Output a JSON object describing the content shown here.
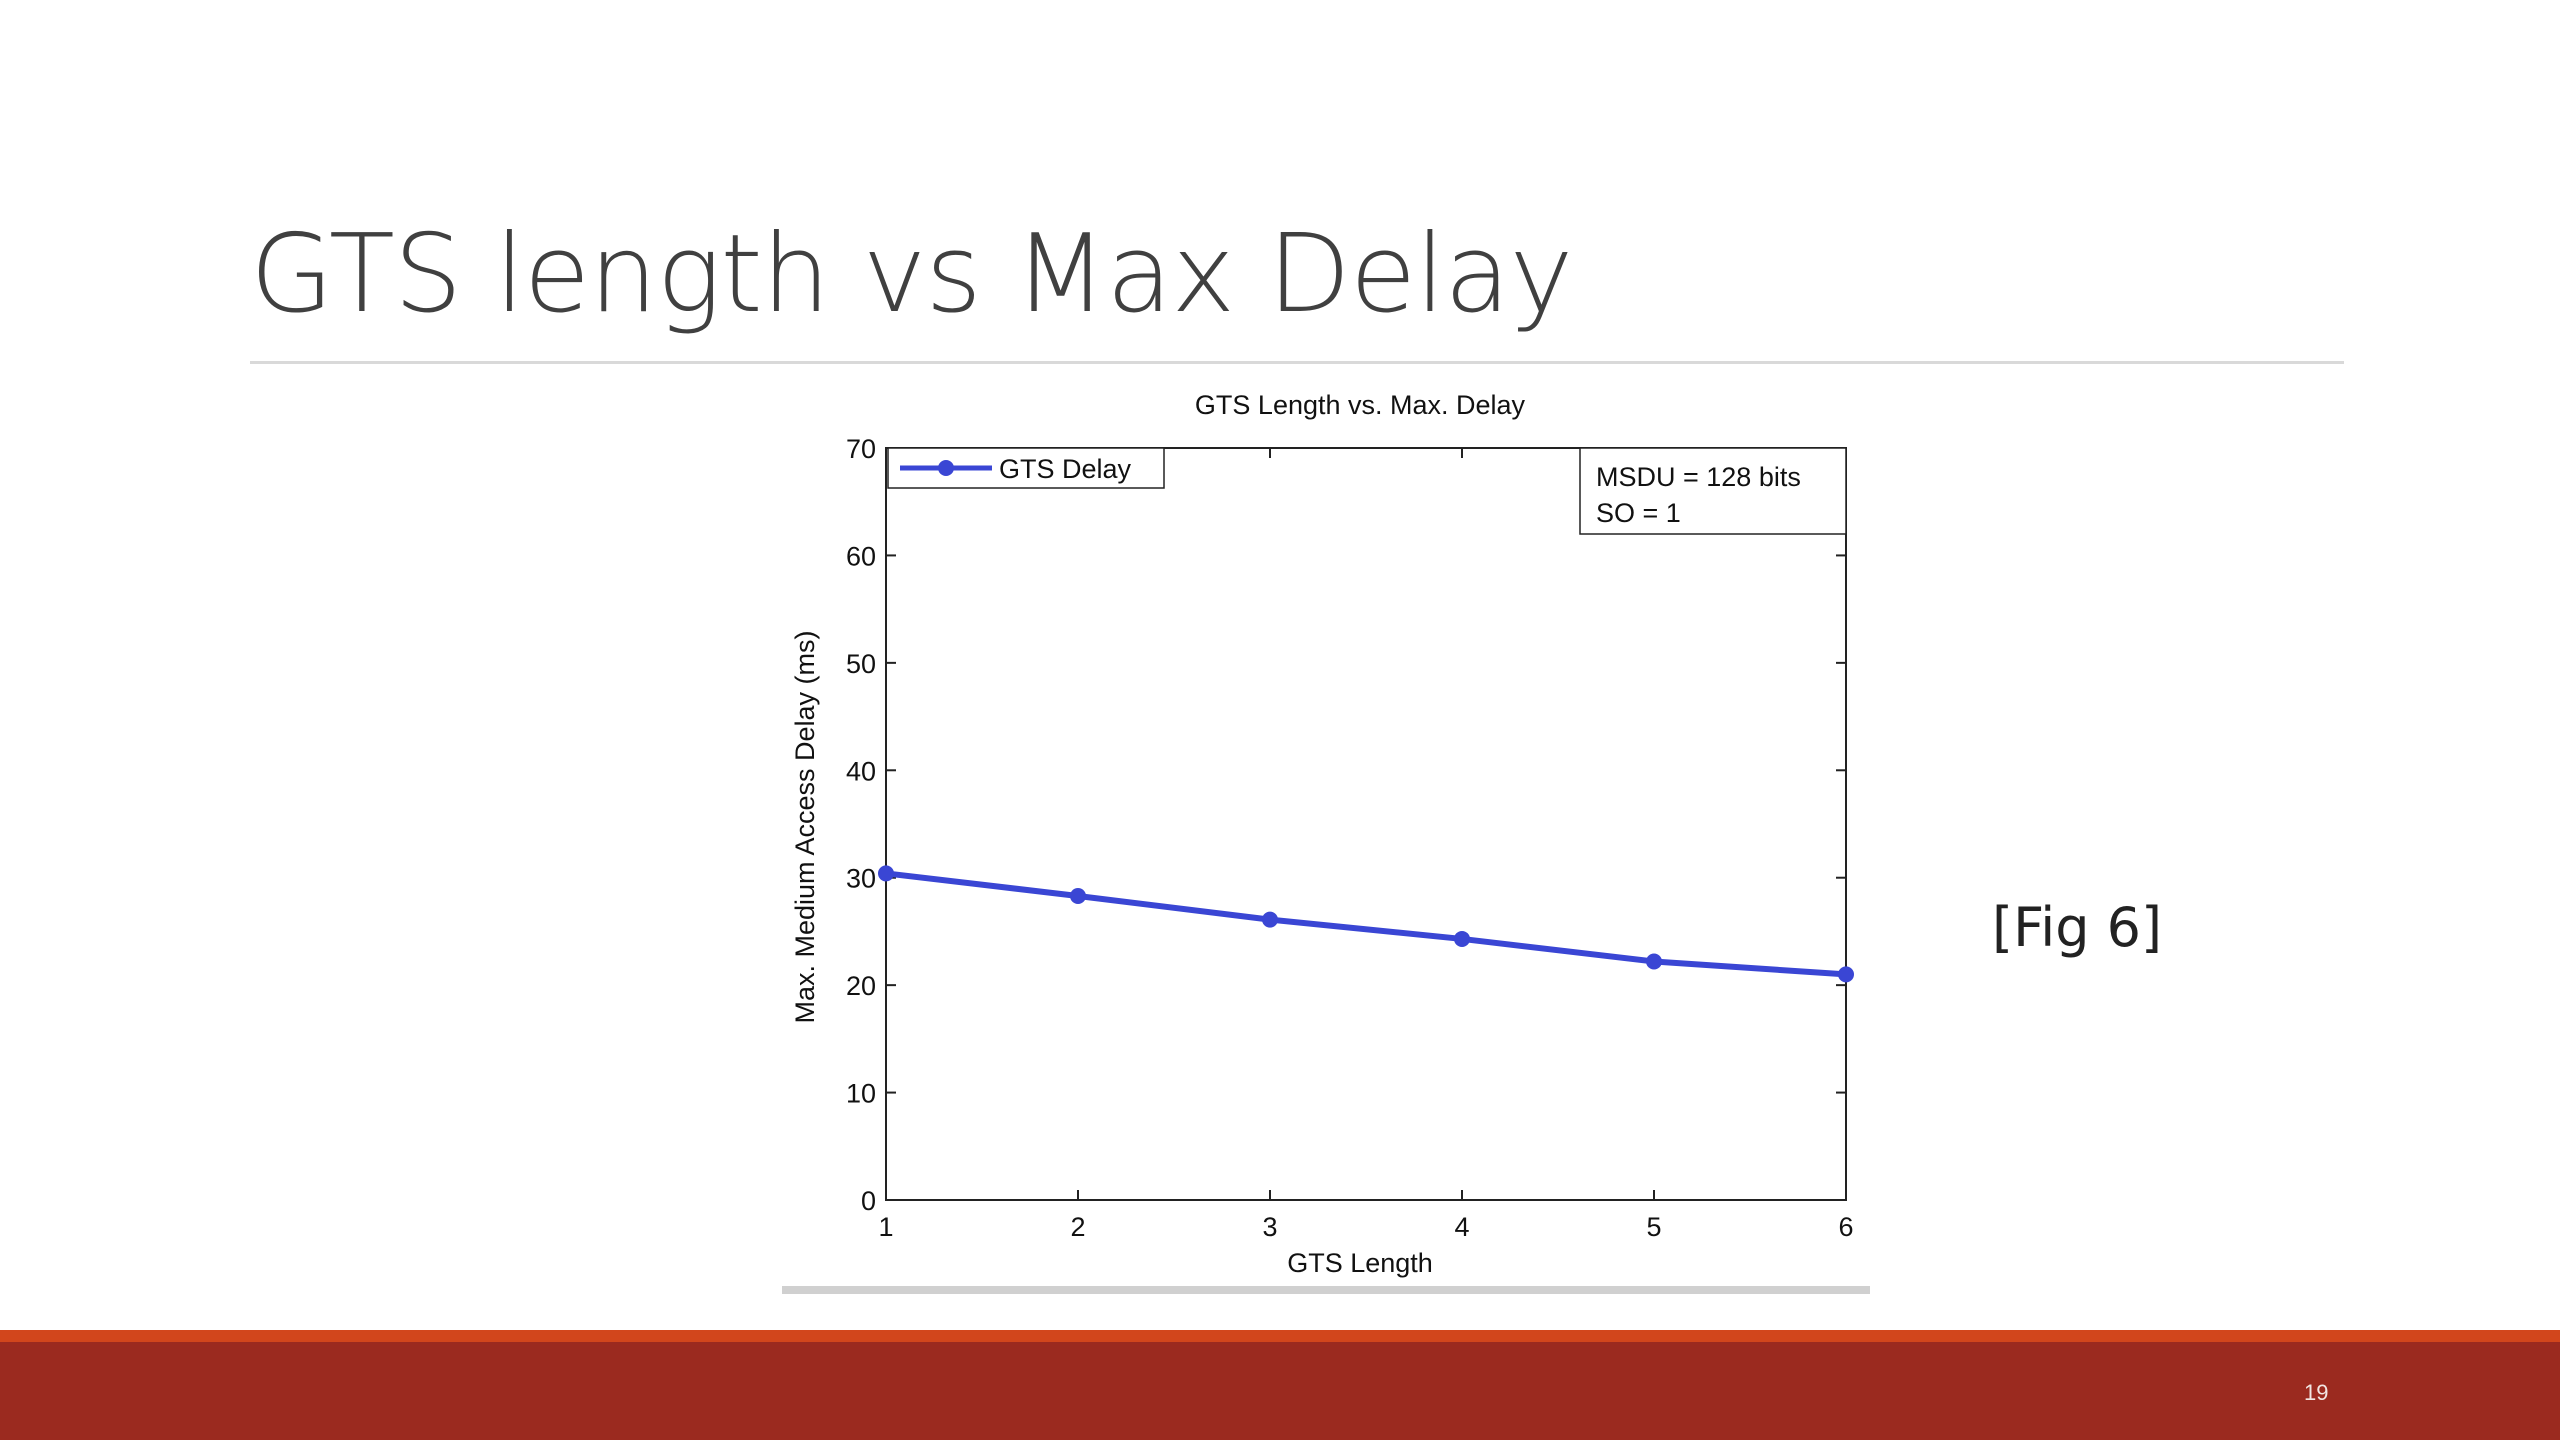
{
  "slide": {
    "title": "GTS length vs Max Delay",
    "figure_caption": "[Fig 6]",
    "slide_number": "19"
  },
  "colors": {
    "title_text": "#404040",
    "series_line": "#3a46d4",
    "footer_orange": "#d2461c",
    "footer_red": "#9b2a1f"
  },
  "chart_data": {
    "type": "line",
    "title": "GTS Length vs. Max. Delay",
    "xlabel": "GTS Length",
    "ylabel": "Max. Medium Access Delay (ms)",
    "xlim": [
      1,
      6
    ],
    "ylim": [
      0,
      70
    ],
    "xticks": [
      1,
      2,
      3,
      4,
      5,
      6
    ],
    "yticks": [
      0,
      10,
      20,
      30,
      40,
      50,
      60,
      70
    ],
    "grid": false,
    "legend_position": "top-left",
    "annotation": {
      "lines": [
        "MSDU = 128 bits",
        "SO = 1"
      ],
      "position": "top-right"
    },
    "series": [
      {
        "name": "GTS Delay",
        "x": [
          1,
          2,
          3,
          4,
          5,
          6
        ],
        "y": [
          30.4,
          28.3,
          26.1,
          24.3,
          22.2,
          21.0
        ],
        "marker": "circle"
      }
    ]
  }
}
